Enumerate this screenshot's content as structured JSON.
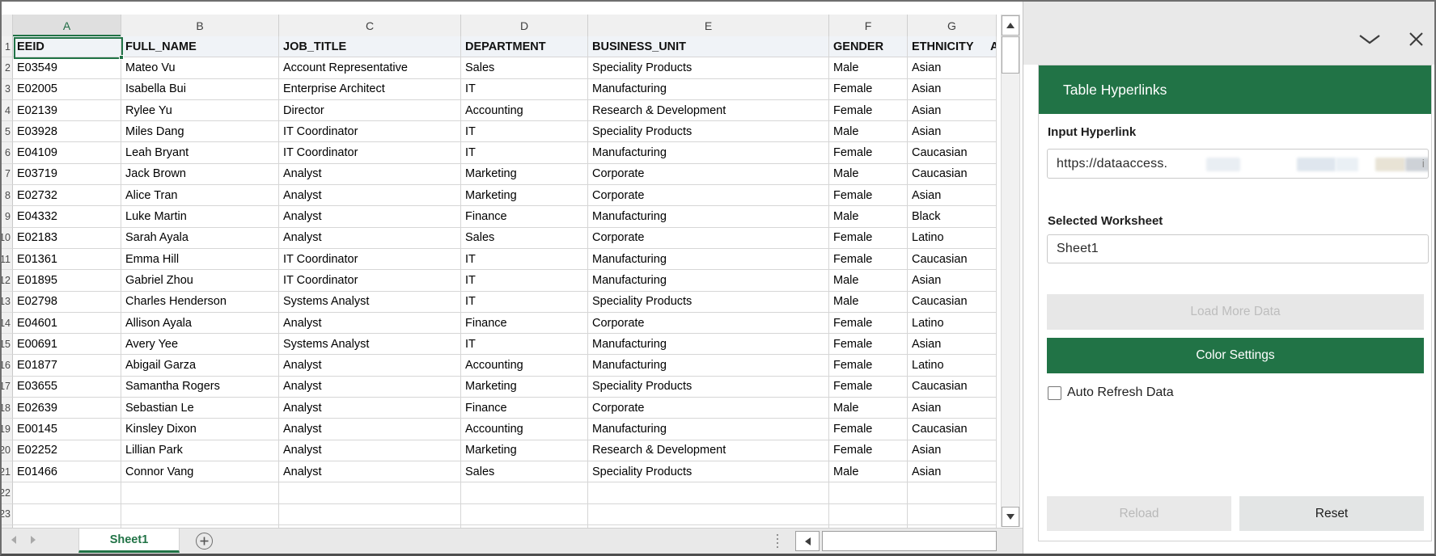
{
  "colors": {
    "excel_green": "#217346"
  },
  "spreadsheet": {
    "selected_cell": "A1",
    "column_letters": [
      "A",
      "B",
      "C",
      "D",
      "E",
      "F",
      "G"
    ],
    "partial_next_column_text": "A",
    "headers": [
      "EEID",
      "FULL_NAME",
      "JOB_TITLE",
      "DEPARTMENT",
      "BUSINESS_UNIT",
      "GENDER",
      "ETHNICITY"
    ],
    "first_row_number": 2,
    "rows": [
      [
        "E03549",
        "Mateo Vu",
        "Account Representative",
        "Sales",
        "Speciality Products",
        "Male",
        "Asian"
      ],
      [
        "E02005",
        "Isabella Bui",
        "Enterprise Architect",
        "IT",
        "Manufacturing",
        "Female",
        "Asian"
      ],
      [
        "E02139",
        "Rylee Yu",
        "Director",
        "Accounting",
        "Research & Development",
        "Female",
        "Asian"
      ],
      [
        "E03928",
        "Miles Dang",
        "IT Coordinator",
        "IT",
        "Speciality Products",
        "Male",
        "Asian"
      ],
      [
        "E04109",
        "Leah Bryant",
        "IT Coordinator",
        "IT",
        "Manufacturing",
        "Female",
        "Caucasian"
      ],
      [
        "E03719",
        "Jack Brown",
        "Analyst",
        "Marketing",
        "Corporate",
        "Male",
        "Caucasian"
      ],
      [
        "E02732",
        "Alice Tran",
        "Analyst",
        "Marketing",
        "Corporate",
        "Female",
        "Asian"
      ],
      [
        "E04332",
        "Luke Martin",
        "Analyst",
        "Finance",
        "Manufacturing",
        "Male",
        "Black"
      ],
      [
        "E02183",
        "Sarah Ayala",
        "Analyst",
        "Sales",
        "Corporate",
        "Female",
        "Latino"
      ],
      [
        "E01361",
        "Emma Hill",
        "IT Coordinator",
        "IT",
        "Manufacturing",
        "Female",
        "Caucasian"
      ],
      [
        "E01895",
        "Gabriel Zhou",
        "IT Coordinator",
        "IT",
        "Manufacturing",
        "Male",
        "Asian"
      ],
      [
        "E02798",
        "Charles Henderson",
        "Systems Analyst",
        "IT",
        "Speciality Products",
        "Male",
        "Caucasian"
      ],
      [
        "E04601",
        "Allison Ayala",
        "Analyst",
        "Finance",
        "Corporate",
        "Female",
        "Latino"
      ],
      [
        "E00691",
        "Avery Yee",
        "Systems Analyst",
        "IT",
        "Manufacturing",
        "Female",
        "Asian"
      ],
      [
        "E01877",
        "Abigail Garza",
        "Analyst",
        "Accounting",
        "Manufacturing",
        "Female",
        "Latino"
      ],
      [
        "E03655",
        "Samantha Rogers",
        "Analyst",
        "Marketing",
        "Speciality Products",
        "Female",
        "Caucasian"
      ],
      [
        "E02639",
        "Sebastian Le",
        "Analyst",
        "Finance",
        "Corporate",
        "Male",
        "Asian"
      ],
      [
        "E00145",
        "Kinsley Dixon",
        "Analyst",
        "Accounting",
        "Manufacturing",
        "Female",
        "Caucasian"
      ],
      [
        "E02252",
        "Lillian Park",
        "Analyst",
        "Marketing",
        "Research & Development",
        "Female",
        "Asian"
      ],
      [
        "E01466",
        "Connor Vang",
        "Analyst",
        "Sales",
        "Speciality Products",
        "Male",
        "Asian"
      ]
    ],
    "empty_trailing_rows": 3
  },
  "tabs": {
    "active": "Sheet1"
  },
  "pane": {
    "title": "Table Hyperlinks",
    "input_hyperlink_label": "Input Hyperlink",
    "hyperlink_value_visible": "https://dataaccess.",
    "selected_worksheet_label": "Selected Worksheet",
    "worksheet_value": "Sheet1",
    "load_more_label": "Load More Data",
    "color_settings_label": "Color Settings",
    "auto_refresh_label": "Auto Refresh Data",
    "auto_refresh_checked": false,
    "reload_label": "Reload",
    "reset_label": "Reset"
  }
}
